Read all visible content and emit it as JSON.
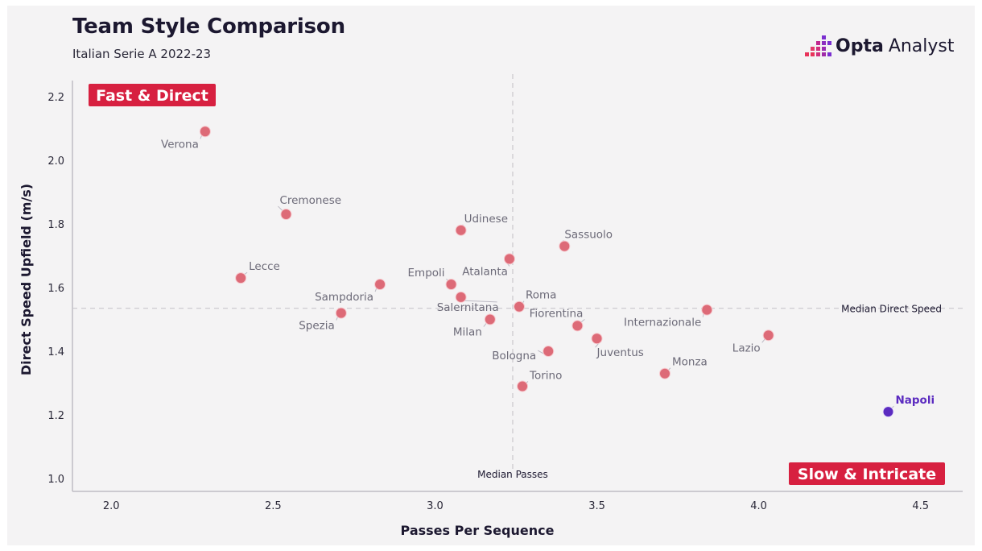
{
  "header": {
    "title": "Team Style Comparison",
    "subtitle": "Italian Serie A 2022-23"
  },
  "logo": {
    "bold_text": "Opta",
    "text": "Analyst",
    "icon": "opta-pixel-icon",
    "icon_colors": [
      "#e8335a",
      "#c0268f",
      "#7b2fd0"
    ]
  },
  "colors": {
    "background": "#f4f3f4",
    "point": "#dd6a77",
    "point_stroke": "#f6c8cd",
    "highlight_point": "#5b2bc0",
    "quadrant_badge": "#d72040",
    "median_line": "#c9c7cc",
    "axis_line": "#bfbdc4"
  },
  "chart_data": {
    "type": "scatter",
    "title": "Team Style Comparison",
    "subtitle": "Italian Serie A 2022-23",
    "xlabel": "Passes Per Sequence",
    "ylabel": "Direct Speed Upfield (m/s)",
    "xlim": [
      1.88,
      4.63
    ],
    "ylim": [
      0.96,
      2.25
    ],
    "xticks": [
      "2.0",
      "2.5",
      "3.0",
      "3.5",
      "4.0",
      "4.5"
    ],
    "yticks": [
      "1.0",
      "1.2",
      "1.4",
      "1.6",
      "1.8",
      "2.0",
      "2.2"
    ],
    "grid": false,
    "medians": {
      "x": 3.24,
      "x_label": "Median Passes",
      "y": 1.535,
      "y_label": "Median Direct Speed"
    },
    "quadrants": {
      "top_left": "Fast & Direct",
      "bottom_right": "Slow & Intricate"
    },
    "points": [
      {
        "team": "Verona",
        "x": 2.29,
        "y": 2.09
      },
      {
        "team": "Cremonese",
        "x": 2.54,
        "y": 1.83
      },
      {
        "team": "Lecce",
        "x": 2.4,
        "y": 1.63
      },
      {
        "team": "Sampdoria",
        "x": 2.83,
        "y": 1.61
      },
      {
        "team": "Spezia",
        "x": 2.71,
        "y": 1.52
      },
      {
        "team": "Udinese",
        "x": 3.08,
        "y": 1.78
      },
      {
        "team": "Empoli",
        "x": 3.05,
        "y": 1.61
      },
      {
        "team": "Atalanta",
        "x": 3.23,
        "y": 1.69
      },
      {
        "team": "Salernitana",
        "x": 3.08,
        "y": 1.57
      },
      {
        "team": "Milan",
        "x": 3.17,
        "y": 1.5
      },
      {
        "team": "Roma",
        "x": 3.26,
        "y": 1.54
      },
      {
        "team": "Sassuolo",
        "x": 3.4,
        "y": 1.73
      },
      {
        "team": "Fiorentina",
        "x": 3.44,
        "y": 1.48
      },
      {
        "team": "Bologna",
        "x": 3.35,
        "y": 1.4
      },
      {
        "team": "Juventus",
        "x": 3.5,
        "y": 1.44
      },
      {
        "team": "Torino",
        "x": 3.27,
        "y": 1.29
      },
      {
        "team": "Internazionale",
        "x": 3.84,
        "y": 1.53
      },
      {
        "team": "Monza",
        "x": 3.71,
        "y": 1.33
      },
      {
        "team": "Lazio",
        "x": 4.03,
        "y": 1.45
      },
      {
        "team": "Napoli",
        "x": 4.4,
        "y": 1.21,
        "highlight": true
      }
    ]
  }
}
